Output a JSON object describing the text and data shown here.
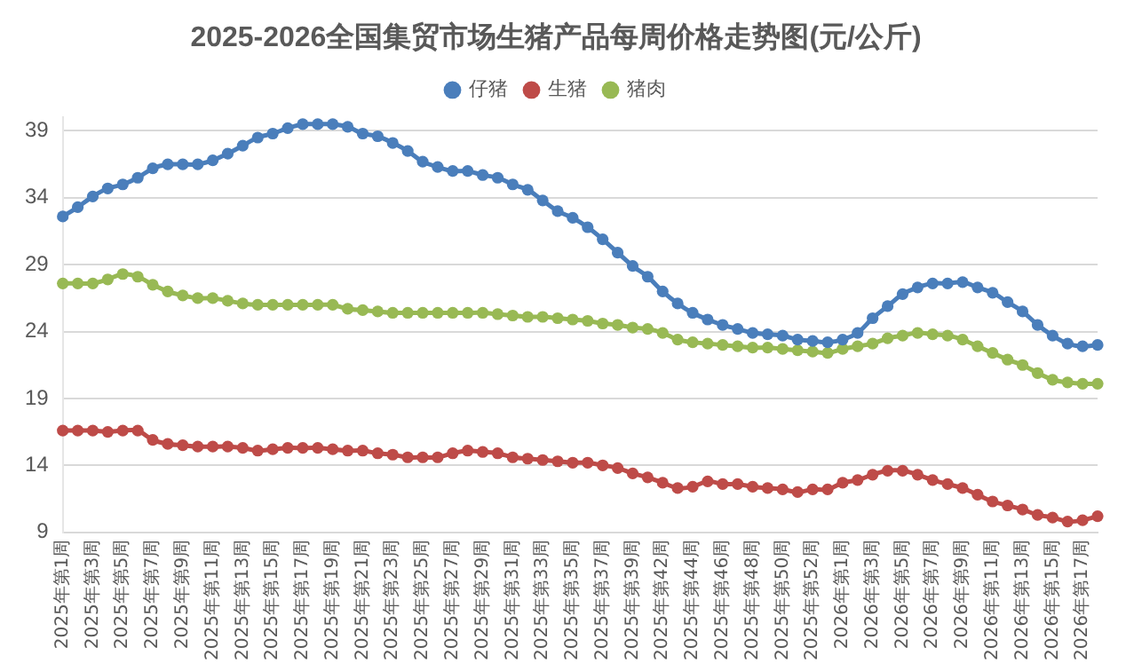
{
  "chart_data": {
    "type": "line",
    "title": "2025-2026全国集贸市场生猪产品每周价格走势图(元/公斤)",
    "categories": [
      "2025年第1周",
      null,
      "2025年第3周",
      null,
      "2025年第5周",
      null,
      "2025年第7周",
      null,
      "2025年第9周",
      null,
      "2025年第11周",
      null,
      "2025年第13周",
      null,
      "2025年第15周",
      null,
      "2025年第17周",
      null,
      "2025年第19周",
      null,
      "2025年第21周",
      null,
      "2025年第23周",
      null,
      "2025年第25周",
      null,
      "2025年第27周",
      null,
      "2025年第29周",
      null,
      "2025年第31周",
      null,
      "2025年第33周",
      null,
      "2025年第35周",
      null,
      "2025年第37周",
      null,
      "2025年第39周",
      null,
      "2025年第42周",
      null,
      "2025年第44周",
      null,
      "2025年第46周",
      null,
      "2025年第48周",
      null,
      "2025年第50周",
      null,
      "2025年第52周",
      null,
      "2026年第1周",
      null,
      "2026年第3周",
      null,
      "2026年第5周",
      null,
      "2026年第7周",
      null,
      "2026年第9周",
      null,
      "2026年第11周",
      null,
      "2026年第13周",
      null,
      "2026年第15周",
      null,
      "2026年第17周",
      null
    ],
    "series": [
      {
        "name": "仔猪",
        "color": "#4a7ebb",
        "values": [
          32.6,
          33.3,
          34.1,
          34.7,
          35.0,
          35.5,
          36.2,
          36.5,
          36.5,
          36.5,
          36.8,
          37.3,
          37.9,
          38.5,
          38.8,
          39.2,
          39.5,
          39.5,
          39.5,
          39.3,
          38.8,
          38.6,
          38.1,
          37.5,
          36.7,
          36.3,
          36.0,
          36.0,
          35.7,
          35.5,
          35.0,
          34.6,
          33.8,
          33.0,
          32.5,
          31.8,
          30.9,
          29.9,
          28.9,
          28.1,
          27.0,
          26.1,
          25.4,
          24.9,
          24.5,
          24.2,
          23.9,
          23.8,
          23.7,
          23.4,
          23.3,
          23.2,
          23.4,
          23.9,
          25.0,
          25.9,
          26.8,
          27.3,
          27.6,
          27.6,
          27.7,
          27.3,
          26.9,
          26.2,
          25.5,
          24.5,
          23.7,
          23.1,
          22.9,
          23.0
        ]
      },
      {
        "name": "生猪",
        "color": "#be4b48",
        "values": [
          16.6,
          16.6,
          16.6,
          16.5,
          16.6,
          16.6,
          15.9,
          15.6,
          15.5,
          15.4,
          15.4,
          15.4,
          15.3,
          15.1,
          15.2,
          15.3,
          15.3,
          15.3,
          15.2,
          15.1,
          15.1,
          14.9,
          14.8,
          14.6,
          14.6,
          14.6,
          14.9,
          15.1,
          15.0,
          14.9,
          14.6,
          14.5,
          14.4,
          14.3,
          14.2,
          14.2,
          14.0,
          13.8,
          13.4,
          13.1,
          12.7,
          12.3,
          12.4,
          12.8,
          12.6,
          12.6,
          12.4,
          12.3,
          12.2,
          12.0,
          12.2,
          12.2,
          12.7,
          12.9,
          13.3,
          13.6,
          13.6,
          13.3,
          12.9,
          12.6,
          12.3,
          11.8,
          11.3,
          11.0,
          10.7,
          10.3,
          10.1,
          9.8,
          9.9,
          10.2
        ]
      },
      {
        "name": "猪肉",
        "color": "#98b954",
        "values": [
          27.6,
          27.6,
          27.6,
          27.9,
          28.3,
          28.1,
          27.5,
          27.0,
          26.7,
          26.5,
          26.5,
          26.3,
          26.1,
          26.0,
          26.0,
          26.0,
          26.0,
          26.0,
          26.0,
          25.7,
          25.6,
          25.5,
          25.4,
          25.4,
          25.4,
          25.4,
          25.4,
          25.4,
          25.4,
          25.3,
          25.2,
          25.1,
          25.1,
          25.0,
          24.9,
          24.8,
          24.6,
          24.5,
          24.3,
          24.2,
          23.9,
          23.4,
          23.2,
          23.1,
          23.0,
          22.9,
          22.8,
          22.8,
          22.7,
          22.6,
          22.5,
          22.4,
          22.7,
          22.9,
          23.1,
          23.5,
          23.7,
          23.9,
          23.8,
          23.7,
          23.4,
          22.9,
          22.4,
          21.9,
          21.5,
          20.9,
          20.4,
          20.2,
          20.1,
          20.1
        ]
      }
    ],
    "ylim": [
      9,
      40
    ],
    "yticks": [
      9,
      14,
      19,
      24,
      29,
      34,
      39
    ],
    "grid": "y",
    "legend": "top",
    "marker": "circle",
    "line_style": "solid"
  }
}
